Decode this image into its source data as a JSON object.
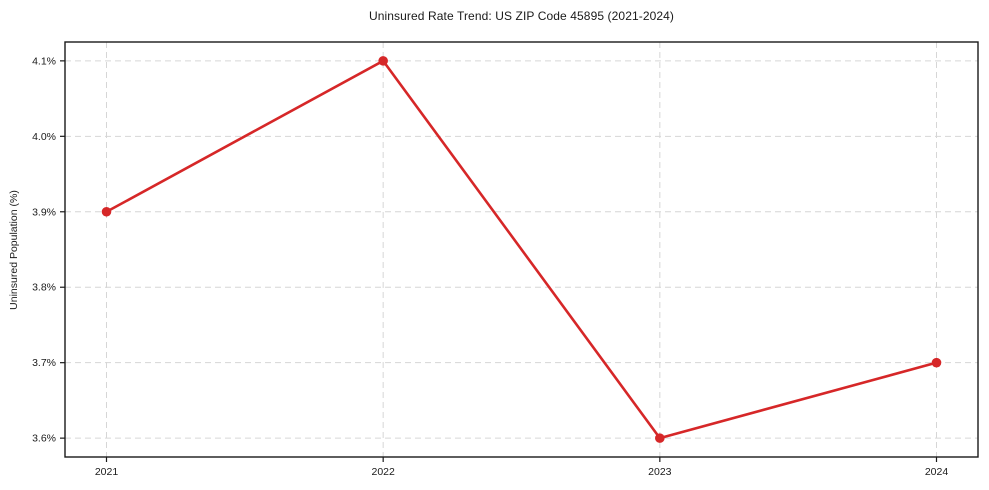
{
  "chart_data": {
    "type": "line",
    "title": "Uninsured Rate Trend: US ZIP Code 45895 (2021-2024)",
    "xlabel": "",
    "ylabel": "Uninsured Population (%)",
    "x": [
      2021,
      2022,
      2023,
      2024
    ],
    "values": [
      3.9,
      4.1,
      3.6,
      3.7
    ],
    "xtick_labels": [
      "2021",
      "2022",
      "2023",
      "2024"
    ],
    "yticks": [
      3.6,
      3.7,
      3.8,
      3.9,
      4.0,
      4.1
    ],
    "ytick_labels": [
      "3.6%",
      "3.7%",
      "3.8%",
      "3.9%",
      "4.0%",
      "4.1%"
    ],
    "xlim": [
      2020.85,
      2024.15
    ],
    "ylim": [
      3.575,
      4.125
    ],
    "grid": true,
    "grid_style": "dashed",
    "legend_position": "none",
    "line_color": "#d62728",
    "marker": "circle",
    "grid_color": "#d6d6d6",
    "axis_color": "#1a1a1a",
    "background_color": "#ffffff"
  }
}
